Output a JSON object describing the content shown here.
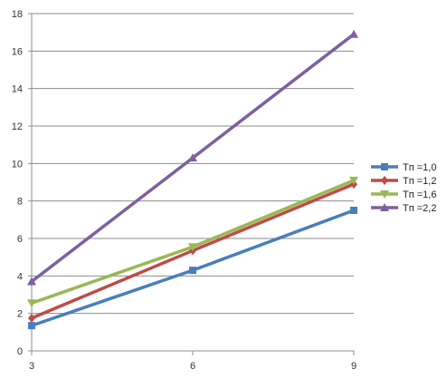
{
  "chart_data": {
    "type": "line",
    "title": "",
    "xlabel": "",
    "ylabel": "",
    "x": [
      3,
      6,
      9
    ],
    "x_ticks": [
      "3",
      "6",
      "9"
    ],
    "ylim": [
      0,
      18
    ],
    "y_ticks": [
      "0",
      "2",
      "4",
      "6",
      "8",
      "10",
      "12",
      "14",
      "16",
      "18"
    ],
    "grid": "horizontal",
    "legend_position": "right",
    "series": [
      {
        "name": "Tп =1,0",
        "color": "#4a7ebb",
        "marker": "square",
        "values": [
          1.35,
          4.3,
          7.5
        ]
      },
      {
        "name": "Tп =1,2",
        "color": "#be4b48",
        "marker": "diamond",
        "values": [
          1.75,
          5.35,
          8.9
        ]
      },
      {
        "name": "Tп =1,6",
        "color": "#98b954",
        "marker": "triangle-down",
        "values": [
          2.55,
          5.55,
          9.1
        ]
      },
      {
        "name": "Tп =2,2",
        "color": "#7d60a0",
        "marker": "triangle-up",
        "values": [
          3.7,
          10.3,
          16.9
        ]
      }
    ]
  }
}
